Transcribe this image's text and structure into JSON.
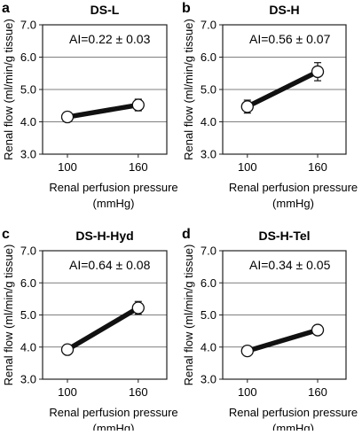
{
  "chart_data": [
    {
      "type": "line",
      "panel_letter": "a",
      "title": "DS-L",
      "annotation": "AI=0.22 ± 0.03",
      "ylabel": "Renal flow (ml/min/g tissue)",
      "xlabel": "Renal perfusion pressure",
      "xunit": "(mmHg)",
      "x": [
        "100",
        "160"
      ],
      "y": [
        4.15,
        4.52
      ],
      "yerr": [
        0.07,
        0.18
      ],
      "ylim": [
        3.0,
        7.0
      ],
      "yticks": [
        "3.0",
        "4.0",
        "5.0",
        "6.0",
        "7.0"
      ],
      "grid": "horizontal"
    },
    {
      "type": "line",
      "panel_letter": "b",
      "title": "DS-H",
      "annotation": "AI=0.56 ± 0.07",
      "ylabel": "Renal flow (ml/min/g tissue)",
      "xlabel": "Renal perfusion pressure",
      "xunit": "(mmHg)",
      "x": [
        "100",
        "160"
      ],
      "y": [
        4.47,
        5.55
      ],
      "yerr": [
        0.2,
        0.28
      ],
      "ylim": [
        3.0,
        7.0
      ],
      "yticks": [
        "3.0",
        "4.0",
        "5.0",
        "6.0",
        "7.0"
      ],
      "grid": "horizontal"
    },
    {
      "type": "line",
      "panel_letter": "c",
      "title": "DS-H-Hyd",
      "annotation": "AI=0.64 ± 0.08",
      "ylabel": "Renal flow (ml/min/g tissue)",
      "xlabel": "Renal perfusion pressure",
      "xunit": "(mmHg)",
      "x": [
        "100",
        "160"
      ],
      "y": [
        3.92,
        5.22
      ],
      "yerr": [
        0.05,
        0.2
      ],
      "ylim": [
        3.0,
        7.0
      ],
      "yticks": [
        "3.0",
        "4.0",
        "5.0",
        "6.0",
        "7.0"
      ],
      "grid": "horizontal"
    },
    {
      "type": "line",
      "panel_letter": "d",
      "title": "DS-H-Tel",
      "annotation": "AI=0.34 ± 0.05",
      "ylabel": "Renal flow (ml/min/g tissue)",
      "xlabel": "Renal perfusion pressure",
      "xunit": "(mmHg)",
      "x": [
        "100",
        "160"
      ],
      "y": [
        3.88,
        4.53
      ],
      "yerr": [
        0.15,
        0.08
      ],
      "ylim": [
        3.0,
        7.0
      ],
      "yticks": [
        "3.0",
        "4.0",
        "5.0",
        "6.0",
        "7.0"
      ],
      "grid": "horizontal"
    }
  ]
}
